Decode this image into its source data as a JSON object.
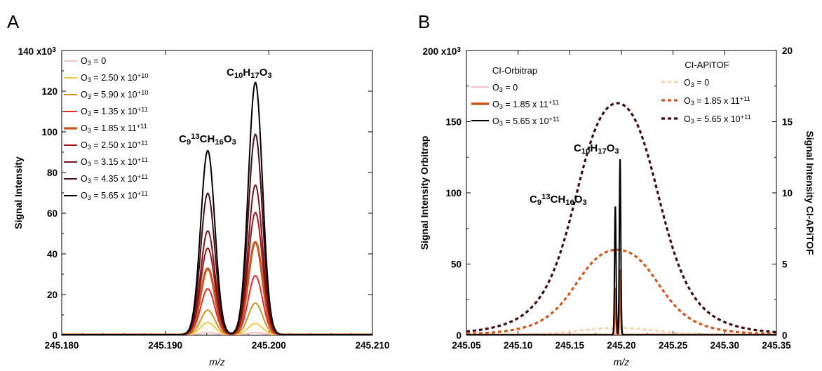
{
  "chart_data": [
    {
      "panel": "A",
      "type": "line",
      "xlabel": "m/z",
      "ylabel": "Signal Intensity",
      "y_exponent_label": "140 x10³",
      "xlim": [
        245.18,
        245.21
      ],
      "ylim": [
        0,
        140
      ],
      "x_ticks": [
        "245.180",
        "245.190",
        "245.200",
        "245.210"
      ],
      "y_ticks": [
        "0",
        "20",
        "40",
        "60",
        "80",
        "100",
        "120"
      ],
      "grid": false,
      "legend_placement": "top-left",
      "peak_centers": [
        245.1941,
        245.1987
      ],
      "annotations": [
        "C₉¹³CH₁₆O₃",
        "C₁₀H₁₇O₃"
      ],
      "series": [
        {
          "name": "O₃ = 0",
          "color": "#f4c2c2",
          "peak_values": [
            1,
            1
          ],
          "bold": false
        },
        {
          "name": "O₃ = 2.50 x 10⁺¹⁰",
          "color": "#f5c842",
          "peak_values": [
            6,
            5.5
          ],
          "bold": false
        },
        {
          "name": "O₃ = 5.90 x 10⁺¹⁰",
          "color": "#c89620",
          "peak_values": [
            12,
            15.5
          ],
          "bold": false
        },
        {
          "name": "O₃ = 1.35 x 10⁺¹¹",
          "color": "#e8262a",
          "peak_values": [
            22.5,
            29
          ],
          "bold": false
        },
        {
          "name": "O₃ = 1.85 x 11⁺¹¹",
          "color": "#c8571a",
          "peak_values": [
            32.5,
            45.5
          ],
          "bold": true
        },
        {
          "name": "O₃ = 2.50 x 10⁺¹¹",
          "color": "#a01522",
          "peak_values": [
            42.5,
            60
          ],
          "bold": false
        },
        {
          "name": "O₃ = 3.15 x 10⁺¹¹",
          "color": "#7e121a",
          "peak_values": [
            51,
            73.5
          ],
          "bold": false
        },
        {
          "name": "O₃ = 4.35 x 10⁺¹¹",
          "color": "#4a0d12",
          "peak_values": [
            69.5,
            98.5
          ],
          "bold": false
        },
        {
          "name": "O₃ = 5.65 x 10⁺¹¹",
          "color": "#000000",
          "peak_values": [
            90.5,
            124
          ],
          "bold": false
        }
      ]
    },
    {
      "panel": "B",
      "type": "line",
      "xlabel": "m/z",
      "ylabel": "Signal Intensity Orbitrap",
      "y2label": "Signal Intensity CI-APiTOF",
      "y_exponent_label": "200 x10³",
      "xlim": [
        245.05,
        245.35
      ],
      "ylim": [
        0,
        200
      ],
      "y2lim": [
        0,
        20
      ],
      "x_ticks": [
        "245.05",
        "245.10",
        "245.15",
        "245.20",
        "245.25",
        "245.30",
        "245.35"
      ],
      "y_ticks": [
        "0",
        "50",
        "100",
        "150"
      ],
      "y2_ticks": [
        "0",
        "5",
        "10",
        "15",
        "20"
      ],
      "grid": false,
      "annotations": [
        "C₉¹³CH₁₆O₃",
        "C₁₀H₁₇O₃"
      ],
      "legend_orbitrap_title": "CI-Orbitrap",
      "legend_apitof_title": "CI-APiTOF",
      "orbitrap_series": [
        {
          "name": "O₃ = 0",
          "color": "#f4c2c2",
          "peak_values": [
            1,
            1
          ]
        },
        {
          "name": "O₃ = 1.85 x 11⁺¹¹",
          "color": "#c8571a",
          "peak_values": [
            32.5,
            45.5
          ]
        },
        {
          "name": "O₃ = 5.65 x 10⁺¹¹",
          "color": "#000000",
          "peak_values": [
            90.5,
            124
          ]
        }
      ],
      "apitof_series": [
        {
          "name": "O₃ = 0",
          "color": "#f7d3b5",
          "peak_value": 0.5
        },
        {
          "name": "O₃ = 1.85 x 11⁺¹¹",
          "color": "#d2571d",
          "peak_value": 6
        },
        {
          "name": "O₃ = 5.65 x 10⁺¹¹",
          "color": "#3a0a0e",
          "peak_value": 16.3
        }
      ]
    }
  ]
}
